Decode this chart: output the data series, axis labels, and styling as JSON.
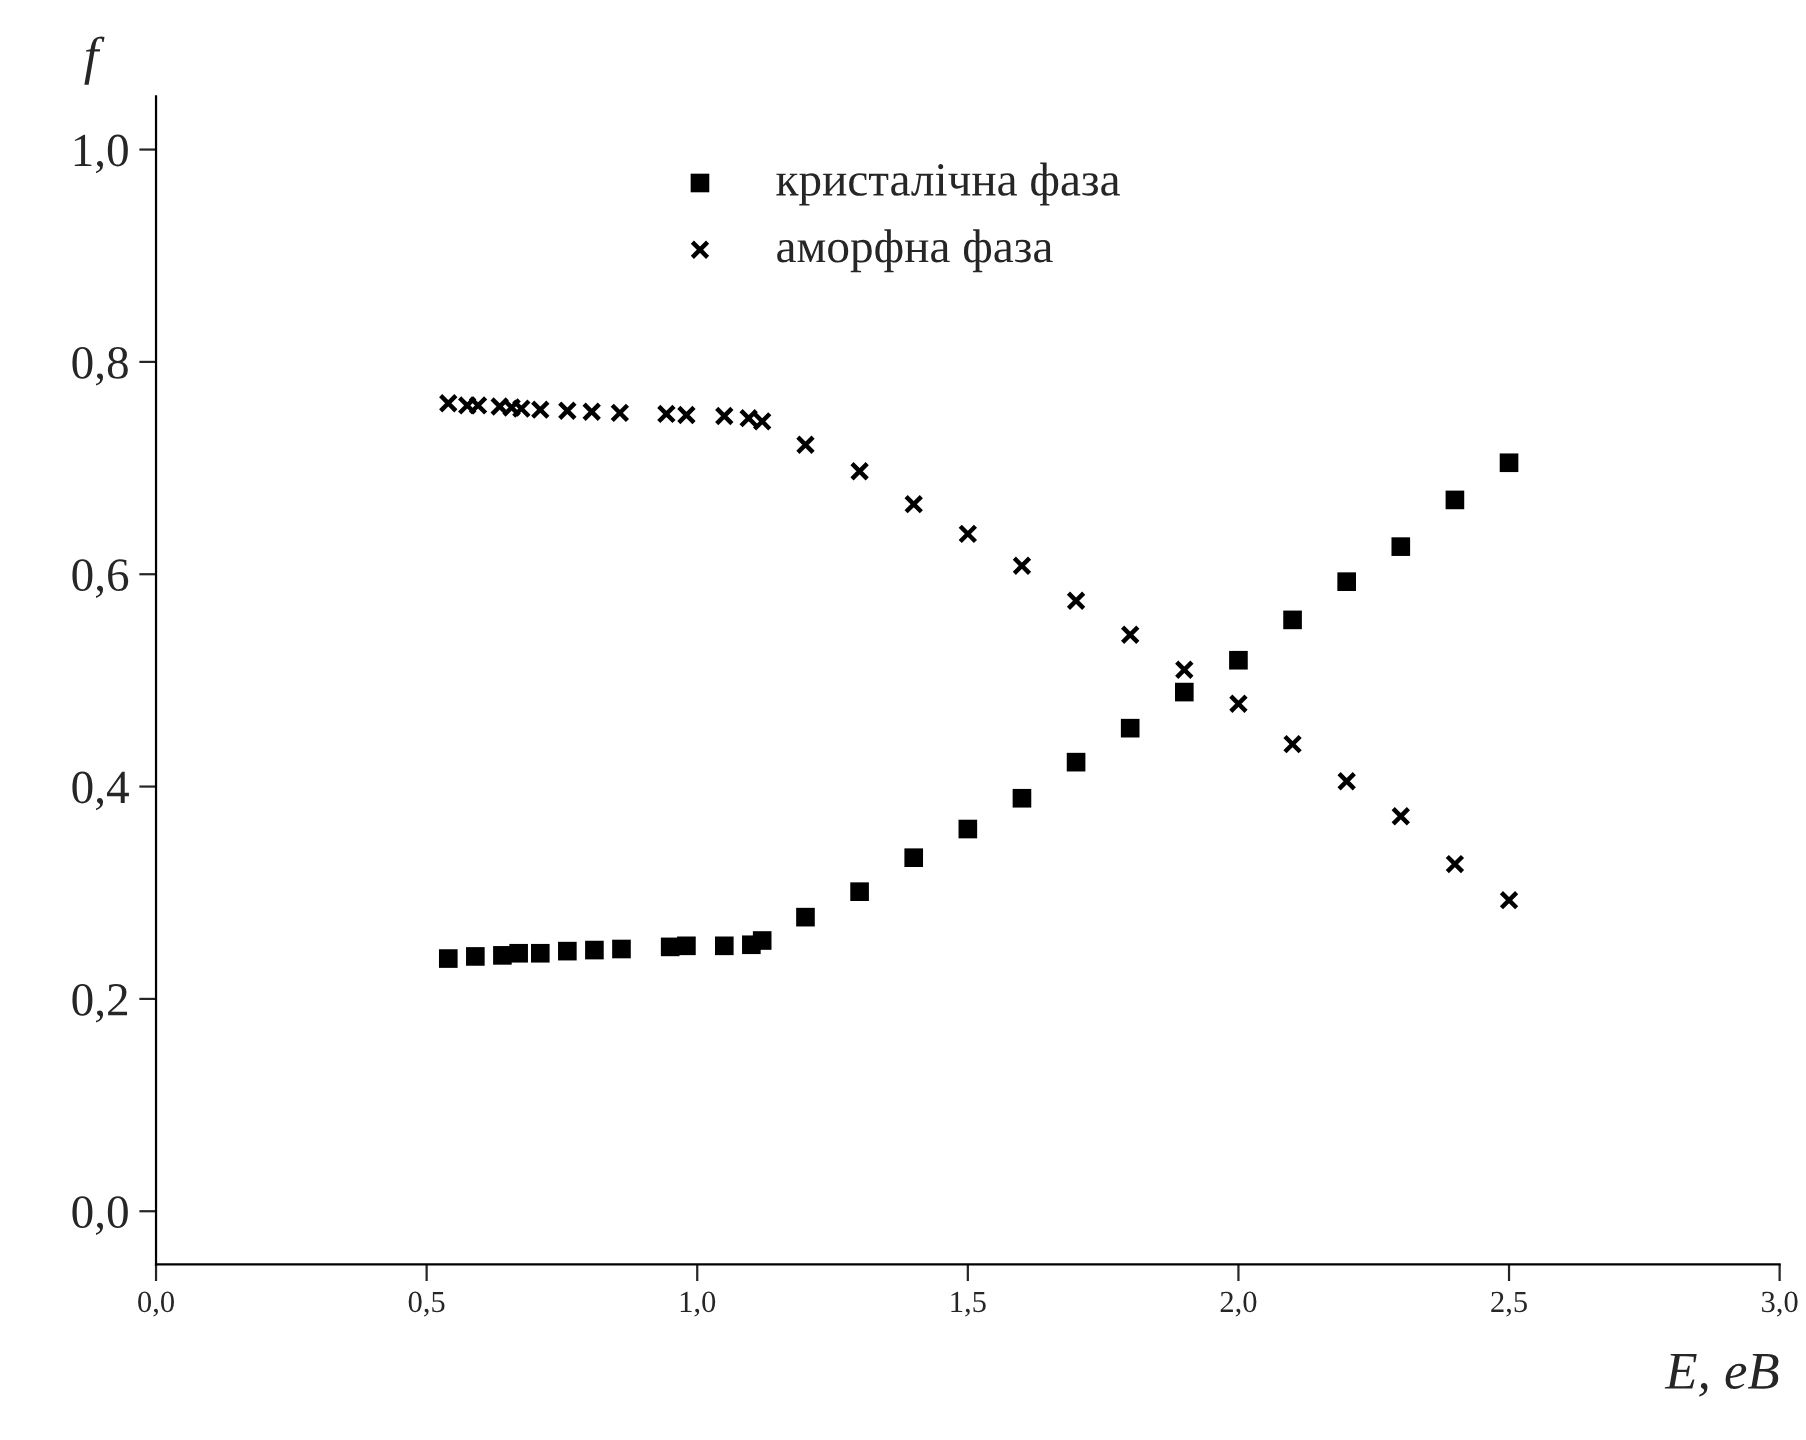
{
  "chart_data": {
    "type": "scatter",
    "xlabel": "E, eB",
    "ylabel": "f",
    "xlim": [
      0,
      3
    ],
    "xticks": [
      {
        "value": 0,
        "label": "0,0"
      },
      {
        "value": 0.5,
        "label": "0,5"
      },
      {
        "value": 1,
        "label": "1,0"
      },
      {
        "value": 1.5,
        "label": "1,5"
      },
      {
        "value": 2,
        "label": "2,0"
      },
      {
        "value": 2.5,
        "label": "2,5"
      },
      {
        "value": 3,
        "label": "3,0"
      }
    ],
    "ylim": [
      -0.05,
      1.05
    ],
    "yticks": [
      {
        "value": 0,
        "label": "0,0"
      },
      {
        "value": 0.2,
        "label": "0,2"
      },
      {
        "value": 0.4,
        "label": "0,4"
      },
      {
        "value": 0.6,
        "label": "0,6"
      },
      {
        "value": 0.8,
        "label": "0,8"
      },
      {
        "value": 1,
        "label": "1,0"
      }
    ],
    "grid": false,
    "legend": "top",
    "series": [
      {
        "name": "кристалічна фаза",
        "color": "#000000",
        "marker": "square",
        "x": [
          0.54,
          0.59,
          0.64,
          0.67,
          0.71,
          0.76,
          0.81,
          0.86,
          0.95,
          0.98,
          1.05,
          1.1,
          1.12,
          1.2,
          1.3,
          1.4,
          1.5,
          1.6,
          1.7,
          1.8,
          1.9,
          2.0,
          2.1,
          2.2,
          2.3,
          2.4,
          2.5
        ],
        "values": [
          0.238,
          0.24,
          0.241,
          0.243,
          0.243,
          0.245,
          0.246,
          0.247,
          0.249,
          0.25,
          0.25,
          0.251,
          0.255,
          0.277,
          0.301,
          0.333,
          0.36,
          0.389,
          0.423,
          0.455,
          0.489,
          0.519,
          0.557,
          0.593,
          0.626,
          0.67,
          0.705
        ]
      },
      {
        "name": "аморфна фаза",
        "color": "#000000",
        "marker": "cross",
        "x": [
          0.54,
          0.575,
          0.595,
          0.635,
          0.657,
          0.675,
          0.71,
          0.76,
          0.805,
          0.857,
          0.943,
          0.98,
          1.05,
          1.095,
          1.12,
          1.2,
          1.3,
          1.4,
          1.5,
          1.6,
          1.7,
          1.8,
          1.9,
          2.0,
          2.1,
          2.2,
          2.3,
          2.4,
          2.5
        ],
        "values": [
          0.761,
          0.759,
          0.759,
          0.758,
          0.757,
          0.756,
          0.755,
          0.754,
          0.753,
          0.752,
          0.751,
          0.75,
          0.749,
          0.747,
          0.744,
          0.722,
          0.697,
          0.666,
          0.638,
          0.608,
          0.575,
          0.543,
          0.51,
          0.478,
          0.44,
          0.405,
          0.372,
          0.327,
          0.293
        ]
      }
    ]
  }
}
